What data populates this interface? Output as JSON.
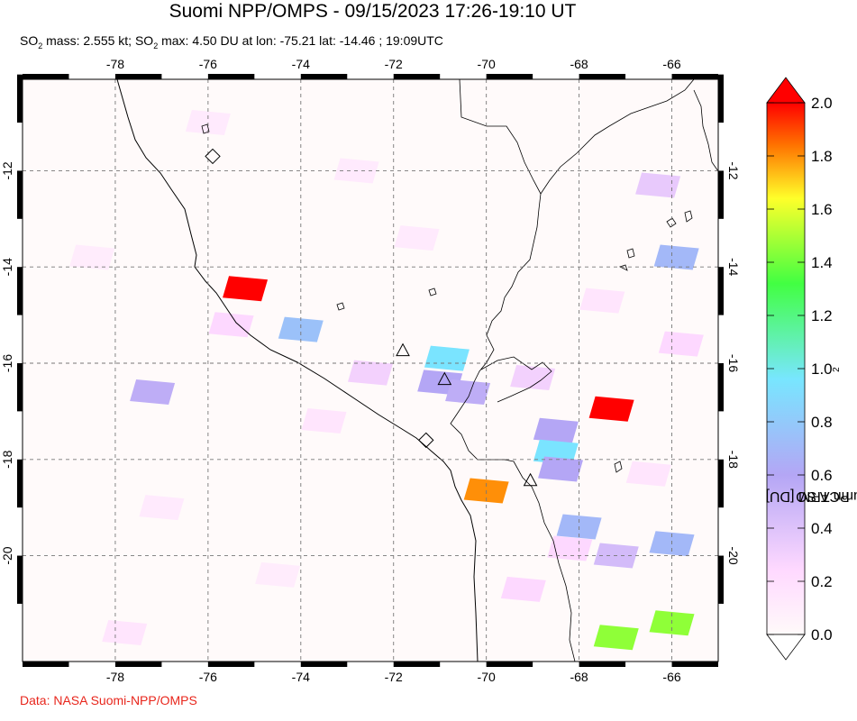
{
  "header": {
    "title": "Suomi NPP/OMPS - 09/15/2023 17:26-19:10 UT",
    "subtitle_prefix": "SO",
    "subtitle_sub": "2",
    "subtitle_mid": " mass: 2.555 kt; SO",
    "subtitle_sub2": "2",
    "subtitle_rest": " max: 4.50 DU at lon: -75.21 lat: -14.46 ; 19:09UTC"
  },
  "footer": {
    "credit": "Data: NASA Suomi-NPP/OMPS"
  },
  "map": {
    "lon_range": [
      -80,
      -65
    ],
    "lat_range": [
      -22.2,
      -10.1
    ],
    "lon_ticks": [
      "-78",
      "-76",
      "-74",
      "-72",
      "-70",
      "-68",
      "-66"
    ],
    "lat_ticks": [
      "-12",
      "-14",
      "-16",
      "-18",
      "-20"
    ],
    "gridline_style": "dashed gray",
    "markers": [
      {
        "type": "diamond",
        "lon": -75.9,
        "lat": -11.7
      },
      {
        "type": "triangle",
        "lon": -71.8,
        "lat": -15.75
      },
      {
        "type": "triangle",
        "lon": -70.9,
        "lat": -16.35
      },
      {
        "type": "diamond",
        "lon": -71.3,
        "lat": -17.6
      },
      {
        "type": "triangle",
        "lon": -69.05,
        "lat": -18.45
      }
    ],
    "so2_pixels": [
      {
        "lon": -75.2,
        "lat": -14.45,
        "du": 2.0
      },
      {
        "lon": -74.0,
        "lat": -15.3,
        "du": 0.75
      },
      {
        "lon": -70.85,
        "lat": -15.9,
        "du": 0.95
      },
      {
        "lon": -71.0,
        "lat": -16.4,
        "du": 0.6
      },
      {
        "lon": -70.4,
        "lat": -16.6,
        "du": 0.55
      },
      {
        "lon": -67.3,
        "lat": -16.95,
        "du": 2.0
      },
      {
        "lon": -68.5,
        "lat": -17.4,
        "du": 0.6
      },
      {
        "lon": -68.5,
        "lat": -17.85,
        "du": 0.95
      },
      {
        "lon": -68.4,
        "lat": -18.2,
        "du": 0.6
      },
      {
        "lon": -70.0,
        "lat": -18.65,
        "du": 1.8
      },
      {
        "lon": -68.0,
        "lat": -19.4,
        "du": 0.7
      },
      {
        "lon": -66.0,
        "lat": -19.75,
        "du": 0.7
      },
      {
        "lon": -67.2,
        "lat": -20.0,
        "du": 0.45
      },
      {
        "lon": -65.9,
        "lat": -13.8,
        "du": 0.7
      },
      {
        "lon": -77.2,
        "lat": -16.6,
        "du": 0.55
      },
      {
        "lon": -66.0,
        "lat": -21.4,
        "du": 1.45
      },
      {
        "lon": -67.2,
        "lat": -21.7,
        "du": 1.45
      },
      {
        "lon": -72.5,
        "lat": -16.2,
        "du": 0.3
      },
      {
        "lon": -69.0,
        "lat": -16.3,
        "du": 0.3
      },
      {
        "lon": -68.2,
        "lat": -19.85,
        "du": 0.25
      },
      {
        "lon": -66.3,
        "lat": -12.3,
        "du": 0.35
      },
      {
        "lon": -75.5,
        "lat": -15.2,
        "du": 0.25
      },
      {
        "lon": -69.2,
        "lat": -20.7,
        "du": 0.25
      },
      {
        "lon": -65.8,
        "lat": -15.6,
        "du": 0.25
      },
      {
        "lon": -72.8,
        "lat": -12.0,
        "du": 0.12
      },
      {
        "lon": -76.0,
        "lat": -11.0,
        "du": 0.12
      },
      {
        "lon": -73.5,
        "lat": -17.2,
        "du": 0.15
      },
      {
        "lon": -78.5,
        "lat": -13.8,
        "du": 0.1
      },
      {
        "lon": -77.0,
        "lat": -19.0,
        "du": 0.12
      },
      {
        "lon": -74.5,
        "lat": -20.4,
        "du": 0.1
      },
      {
        "lon": -71.5,
        "lat": -13.4,
        "du": 0.12
      },
      {
        "lon": -77.8,
        "lat": -21.6,
        "du": 0.15
      },
      {
        "lon": -67.5,
        "lat": -14.7,
        "du": 0.15
      },
      {
        "lon": -66.5,
        "lat": -18.3,
        "du": 0.15
      }
    ]
  },
  "colorbar": {
    "label_prefix": "PCA SO",
    "label_sub": "2",
    "label_rest": " column TRM [DU]",
    "ticks": [
      "2.0",
      "1.8",
      "1.6",
      "1.4",
      "1.2",
      "1.0",
      "0.8",
      "0.6",
      "0.4",
      "0.2",
      "0.0"
    ],
    "range": [
      0,
      2
    ],
    "colors": [
      "#fffafa",
      "#ffd9ff",
      "#b4a6f5",
      "#78e6ff",
      "#42ff42",
      "#ffff2a",
      "#ff7300",
      "#ff0000"
    ]
  }
}
